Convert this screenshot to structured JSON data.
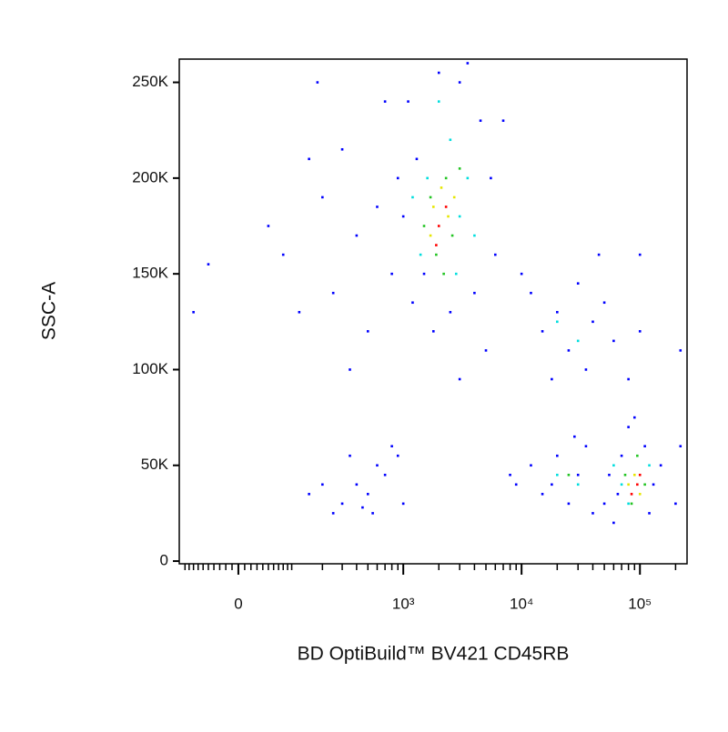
{
  "chart_data": {
    "type": "scatter",
    "x_label": "BD OptiBuild™ BV421 CD45RB",
    "y_label": "SSC-A",
    "xscale": "biexponential",
    "xlim": [
      -115,
      250000
    ],
    "ylim": [
      -1400,
      262144
    ],
    "xticks": [
      0,
      {
        "value": 1000,
        "label": "10³"
      },
      {
        "value": 10000,
        "label": "10⁴"
      },
      {
        "value": 100000,
        "label": "10⁵"
      }
    ],
    "xminorticks": [
      -100,
      -90,
      -80,
      -70,
      -60,
      -50,
      -40,
      -30,
      -20,
      -10,
      10,
      20,
      30,
      40,
      50,
      60,
      70,
      80,
      90,
      100,
      200,
      300,
      400,
      500,
      600,
      700,
      800,
      900,
      2000,
      3000,
      4000,
      5000,
      6000,
      7000,
      8000,
      9000,
      20000,
      30000,
      40000,
      50000,
      60000,
      70000,
      80000,
      90000,
      200000
    ],
    "yticks": [
      0,
      {
        "value": 50000,
        "label": "50K"
      },
      {
        "value": 100000,
        "label": "100K"
      },
      {
        "value": 150000,
        "label": "150K"
      },
      {
        "value": 200000,
        "label": "200K"
      },
      {
        "value": 250000,
        "label": "250K"
      }
    ],
    "series": [
      {
        "color": "#0000ff",
        "x": [
          1100,
          1300,
          1500,
          1200,
          3000,
          4500,
          5500,
          6000,
          1000,
          2500,
          4000,
          2000,
          3500,
          7000,
          900,
          800,
          1800,
          5000,
          3000,
          50,
          80,
          150,
          200,
          300,
          250,
          400,
          500,
          350,
          600,
          120,
          -50,
          -80,
          180,
          700,
          300,
          400,
          500,
          600,
          700,
          800,
          250,
          450,
          900,
          1000,
          350,
          150,
          200,
          550,
          12000,
          15000,
          20000,
          25000,
          30000,
          35000,
          40000,
          18000,
          50000,
          60000,
          80000,
          10000,
          45000,
          100000,
          9000,
          12000,
          15000,
          20000,
          25000,
          30000,
          35000,
          8000,
          40000,
          18000,
          28000,
          50000,
          60000,
          70000,
          80000,
          110000,
          130000,
          120000,
          55000,
          90000,
          65000,
          150000,
          200000,
          220000,
          100000,
          220000
        ],
        "y": [
          240000,
          210000,
          150000,
          135000,
          250000,
          230000,
          200000,
          160000,
          180000,
          130000,
          140000,
          255000,
          260000,
          230000,
          200000,
          150000,
          120000,
          110000,
          95000,
          175000,
          160000,
          210000,
          190000,
          215000,
          140000,
          170000,
          120000,
          100000,
          185000,
          130000,
          155000,
          130000,
          250000,
          240000,
          30000,
          40000,
          35000,
          50000,
          45000,
          60000,
          25000,
          28000,
          55000,
          30000,
          55000,
          35000,
          40000,
          25000,
          140000,
          120000,
          130000,
          110000,
          145000,
          100000,
          125000,
          95000,
          135000,
          115000,
          95000,
          150000,
          160000,
          120000,
          40000,
          50000,
          35000,
          55000,
          30000,
          45000,
          60000,
          45000,
          25000,
          40000,
          65000,
          30000,
          20000,
          55000,
          70000,
          60000,
          40000,
          25000,
          45000,
          75000,
          35000,
          50000,
          30000,
          110000,
          160000,
          60000
        ]
      },
      {
        "color": "#00dede",
        "x": [
          1600,
          2500,
          3000,
          1400,
          2800,
          3500,
          2000,
          1200,
          4000,
          20000,
          30000,
          20000,
          30000,
          60000,
          80000,
          120000,
          70000
        ],
        "y": [
          200000,
          220000,
          180000,
          160000,
          150000,
          200000,
          240000,
          190000,
          170000,
          125000,
          115000,
          45000,
          40000,
          50000,
          30000,
          50000,
          40000
        ]
      },
      {
        "color": "#22c422",
        "x": [
          1700,
          2300,
          2600,
          1900,
          3000,
          2200,
          1500,
          75000,
          95000,
          110000,
          85000,
          25000
        ],
        "y": [
          190000,
          200000,
          170000,
          160000,
          205000,
          150000,
          175000,
          45000,
          55000,
          40000,
          30000,
          45000
        ]
      },
      {
        "color": "#e6e600",
        "x": [
          1800,
          2400,
          2100,
          2700,
          1700,
          90000,
          100000,
          80000
        ],
        "y": [
          185000,
          180000,
          195000,
          190000,
          170000,
          45000,
          35000,
          40000
        ]
      },
      {
        "color": "#ff0000",
        "x": [
          2000,
          1900,
          2300,
          95000,
          85000,
          100000
        ],
        "y": [
          175000,
          165000,
          185000,
          40000,
          35000,
          45000
        ]
      }
    ]
  }
}
